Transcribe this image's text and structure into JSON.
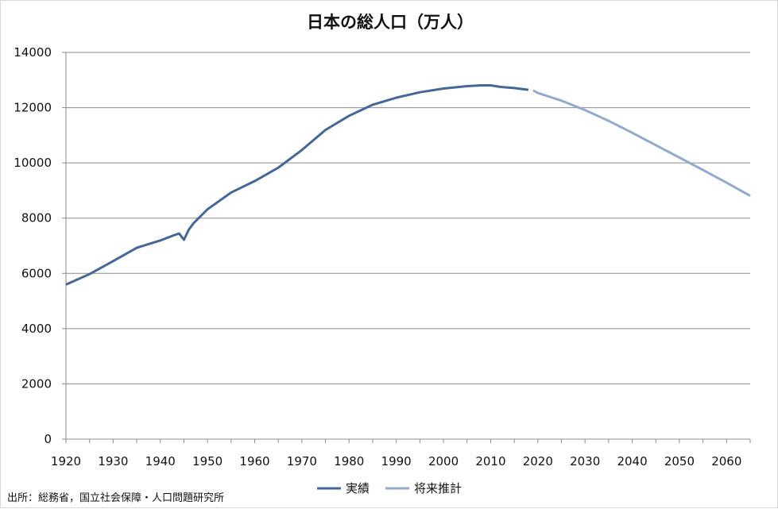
{
  "chart_data": {
    "type": "line",
    "title": "日本の総人口（万人）",
    "xlabel": "",
    "ylabel": "",
    "xlim": [
      1920,
      2065
    ],
    "ylim": [
      0,
      14000
    ],
    "x_ticks": [
      1920,
      1930,
      1940,
      1950,
      1960,
      1970,
      1980,
      1990,
      2000,
      2010,
      2020,
      2030,
      2040,
      2050,
      2060
    ],
    "y_ticks": [
      0,
      2000,
      4000,
      6000,
      8000,
      10000,
      12000,
      14000
    ],
    "grid": "horizontal",
    "legend_position": "bottom",
    "colors": {
      "actual": "#44679a",
      "projection": "#93a9cf",
      "grid": "#8c8c8c",
      "axis": "#8c8c8c"
    },
    "series": [
      {
        "name": "実績",
        "points": [
          [
            1920,
            5596
          ],
          [
            1925,
            5974
          ],
          [
            1930,
            6445
          ],
          [
            1935,
            6925
          ],
          [
            1940,
            7193
          ],
          [
            1943,
            7388
          ],
          [
            1944,
            7443
          ],
          [
            1945,
            7215
          ],
          [
            1946,
            7575
          ],
          [
            1947,
            7810
          ],
          [
            1950,
            8320
          ],
          [
            1955,
            8928
          ],
          [
            1960,
            9342
          ],
          [
            1965,
            9828
          ],
          [
            1970,
            10467
          ],
          [
            1972,
            10760
          ],
          [
            1975,
            11194
          ],
          [
            1980,
            11706
          ],
          [
            1985,
            12105
          ],
          [
            1990,
            12361
          ],
          [
            1995,
            12557
          ],
          [
            2000,
            12693
          ],
          [
            2005,
            12777
          ],
          [
            2008,
            12808
          ],
          [
            2010,
            12806
          ],
          [
            2012,
            12752
          ],
          [
            2015,
            12709
          ],
          [
            2018,
            12644
          ]
        ]
      },
      {
        "name": "将来推計",
        "points": [
          [
            2019,
            12625
          ],
          [
            2020,
            12532
          ],
          [
            2025,
            12254
          ],
          [
            2030,
            11913
          ],
          [
            2035,
            11522
          ],
          [
            2040,
            11092
          ],
          [
            2045,
            10642
          ],
          [
            2050,
            10192
          ],
          [
            2055,
            9744
          ],
          [
            2060,
            9284
          ],
          [
            2065,
            8808
          ]
        ]
      }
    ]
  },
  "source_note": "出所：総務省，国立社会保障・人口問題研究所"
}
